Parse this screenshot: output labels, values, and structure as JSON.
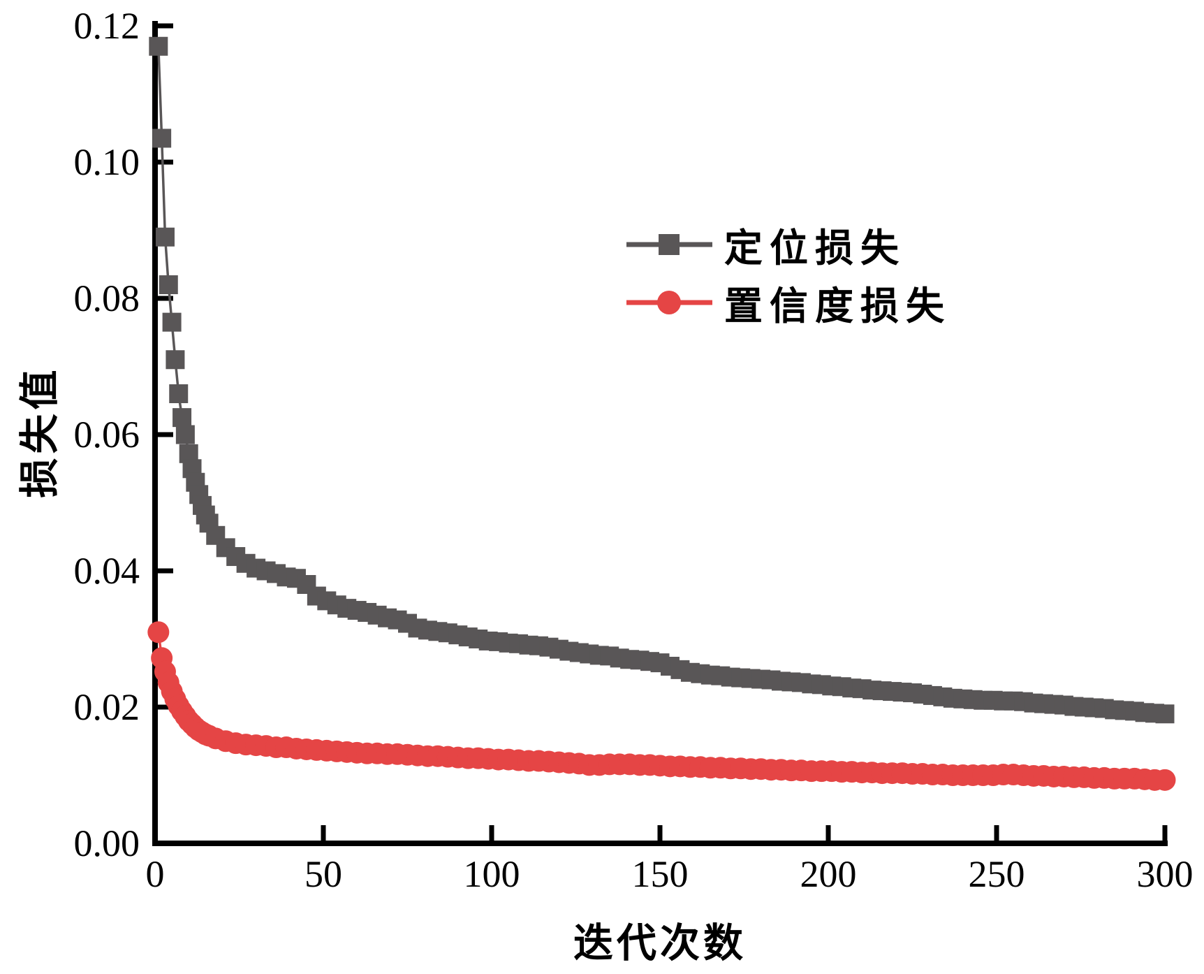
{
  "figure": {
    "background": "#ffffff",
    "axis_color": "#000000",
    "text_color": "#000000"
  },
  "chart_data": {
    "type": "line",
    "title": "",
    "xlabel": "迭代次数",
    "ylabel": "损失值",
    "xlim": [
      0,
      300
    ],
    "ylim": [
      0.0,
      0.12
    ],
    "xticks": [
      0,
      50,
      100,
      150,
      200,
      250,
      300
    ],
    "ytick_labels": [
      "0.00",
      "0.02",
      "0.04",
      "0.06",
      "0.08",
      "0.10",
      "0.12"
    ],
    "ytick_values": [
      0.0,
      0.02,
      0.04,
      0.06,
      0.08,
      0.1,
      0.12
    ],
    "grid": false,
    "legend_position": "upper-right-inside",
    "series": [
      {
        "name": "定位损失",
        "color": "#595657",
        "marker": "square",
        "points": [
          [
            1,
            0.117
          ],
          [
            2,
            0.1035
          ],
          [
            3,
            0.089
          ],
          [
            4,
            0.082
          ],
          [
            5,
            0.0765
          ],
          [
            6,
            0.071
          ],
          [
            7,
            0.066
          ],
          [
            8,
            0.0625
          ],
          [
            9,
            0.06
          ],
          [
            10,
            0.0572
          ],
          [
            11,
            0.055
          ],
          [
            12,
            0.053
          ],
          [
            13,
            0.0512
          ],
          [
            14,
            0.0496
          ],
          [
            15,
            0.0482
          ],
          [
            16,
            0.047
          ],
          [
            18,
            0.0452
          ],
          [
            21,
            0.0434
          ],
          [
            24,
            0.0421
          ],
          [
            27,
            0.0411
          ],
          [
            30,
            0.0404
          ],
          [
            33,
            0.04
          ],
          [
            36,
            0.0396
          ],
          [
            39,
            0.0391
          ],
          [
            42,
            0.0389
          ],
          [
            45,
            0.038
          ],
          [
            48,
            0.0363
          ],
          [
            51,
            0.0356
          ],
          [
            54,
            0.035
          ],
          [
            57,
            0.0345
          ],
          [
            60,
            0.0342
          ],
          [
            63,
            0.0339
          ],
          [
            66,
            0.0335
          ],
          [
            69,
            0.0331
          ],
          [
            72,
            0.0328
          ],
          [
            75,
            0.0323
          ],
          [
            78,
            0.0316
          ],
          [
            81,
            0.0313
          ],
          [
            84,
            0.0311
          ],
          [
            87,
            0.0309
          ],
          [
            90,
            0.0306
          ],
          [
            93,
            0.0303
          ],
          [
            96,
            0.03
          ],
          [
            99,
            0.0297
          ],
          [
            102,
            0.0296
          ],
          [
            105,
            0.0294
          ],
          [
            108,
            0.0293
          ],
          [
            111,
            0.0291
          ],
          [
            114,
            0.029
          ],
          [
            117,
            0.0288
          ],
          [
            120,
            0.0285
          ],
          [
            123,
            0.0282
          ],
          [
            126,
            0.028
          ],
          [
            129,
            0.0278
          ],
          [
            132,
            0.0276
          ],
          [
            135,
            0.0275
          ],
          [
            138,
            0.0272
          ],
          [
            141,
            0.027
          ],
          [
            144,
            0.0269
          ],
          [
            147,
            0.0267
          ],
          [
            150,
            0.0265
          ],
          [
            153,
            0.026
          ],
          [
            156,
            0.0255
          ],
          [
            159,
            0.0251
          ],
          [
            162,
            0.0249
          ],
          [
            165,
            0.0247
          ],
          [
            168,
            0.0246
          ],
          [
            171,
            0.0244
          ],
          [
            174,
            0.0243
          ],
          [
            177,
            0.0242
          ],
          [
            180,
            0.0241
          ],
          [
            183,
            0.024
          ],
          [
            186,
            0.0238
          ],
          [
            189,
            0.0237
          ],
          [
            192,
            0.0236
          ],
          [
            195,
            0.0234
          ],
          [
            198,
            0.0233
          ],
          [
            201,
            0.0231
          ],
          [
            204,
            0.023
          ],
          [
            207,
            0.0228
          ],
          [
            210,
            0.0227
          ],
          [
            213,
            0.0225
          ],
          [
            216,
            0.0224
          ],
          [
            219,
            0.0223
          ],
          [
            222,
            0.0222
          ],
          [
            225,
            0.0221
          ],
          [
            228,
            0.0219
          ],
          [
            231,
            0.0217
          ],
          [
            234,
            0.0215
          ],
          [
            237,
            0.0213
          ],
          [
            240,
            0.0212
          ],
          [
            243,
            0.0211
          ],
          [
            246,
            0.021
          ],
          [
            249,
            0.021
          ],
          [
            252,
            0.0209
          ],
          [
            255,
            0.0209
          ],
          [
            258,
            0.0208
          ],
          [
            261,
            0.0206
          ],
          [
            264,
            0.0205
          ],
          [
            267,
            0.0204
          ],
          [
            270,
            0.0203
          ],
          [
            273,
            0.0201
          ],
          [
            276,
            0.02
          ],
          [
            279,
            0.0199
          ],
          [
            282,
            0.0198
          ],
          [
            285,
            0.0196
          ],
          [
            288,
            0.0195
          ],
          [
            291,
            0.0194
          ],
          [
            294,
            0.0192
          ],
          [
            297,
            0.0191
          ],
          [
            300,
            0.019
          ]
        ]
      },
      {
        "name": "置信度损失",
        "color": "#e54545",
        "marker": "circle",
        "points": [
          [
            1,
            0.031
          ],
          [
            2,
            0.0272
          ],
          [
            3,
            0.0252
          ],
          [
            4,
            0.0236
          ],
          [
            5,
            0.0223
          ],
          [
            6,
            0.0212
          ],
          [
            7,
            0.0202
          ],
          [
            8,
            0.0194
          ],
          [
            9,
            0.0187
          ],
          [
            10,
            0.018
          ],
          [
            11,
            0.0175
          ],
          [
            12,
            0.017
          ],
          [
            13,
            0.0166
          ],
          [
            14,
            0.0163
          ],
          [
            15,
            0.016
          ],
          [
            16,
            0.0158
          ],
          [
            18,
            0.0154
          ],
          [
            21,
            0.015
          ],
          [
            24,
            0.0147
          ],
          [
            27,
            0.0145
          ],
          [
            30,
            0.0144
          ],
          [
            33,
            0.0143
          ],
          [
            36,
            0.0141
          ],
          [
            39,
            0.0141
          ],
          [
            42,
            0.0139
          ],
          [
            45,
            0.0138
          ],
          [
            48,
            0.0137
          ],
          [
            51,
            0.0136
          ],
          [
            54,
            0.0135
          ],
          [
            57,
            0.0134
          ],
          [
            60,
            0.0133
          ],
          [
            63,
            0.0132
          ],
          [
            66,
            0.0132
          ],
          [
            69,
            0.0131
          ],
          [
            72,
            0.0131
          ],
          [
            75,
            0.013
          ],
          [
            78,
            0.0129
          ],
          [
            81,
            0.0128
          ],
          [
            84,
            0.0128
          ],
          [
            87,
            0.0127
          ],
          [
            90,
            0.0126
          ],
          [
            93,
            0.0125
          ],
          [
            96,
            0.0125
          ],
          [
            99,
            0.0124
          ],
          [
            102,
            0.0123
          ],
          [
            105,
            0.0123
          ],
          [
            108,
            0.0122
          ],
          [
            111,
            0.0121
          ],
          [
            114,
            0.0121
          ],
          [
            117,
            0.012
          ],
          [
            120,
            0.0119
          ],
          [
            123,
            0.0118
          ],
          [
            126,
            0.0117
          ],
          [
            129,
            0.0115
          ],
          [
            132,
            0.0115
          ],
          [
            135,
            0.0116
          ],
          [
            138,
            0.0116
          ],
          [
            141,
            0.0116
          ],
          [
            144,
            0.0115
          ],
          [
            147,
            0.0115
          ],
          [
            150,
            0.0114
          ],
          [
            153,
            0.0113
          ],
          [
            156,
            0.0113
          ],
          [
            159,
            0.0112
          ],
          [
            162,
            0.0112
          ],
          [
            165,
            0.0111
          ],
          [
            168,
            0.0111
          ],
          [
            171,
            0.011
          ],
          [
            174,
            0.011
          ],
          [
            177,
            0.0109
          ],
          [
            180,
            0.0109
          ],
          [
            183,
            0.0108
          ],
          [
            186,
            0.0108
          ],
          [
            189,
            0.0107
          ],
          [
            192,
            0.0107
          ],
          [
            195,
            0.0106
          ],
          [
            198,
            0.0106
          ],
          [
            201,
            0.0106
          ],
          [
            204,
            0.0105
          ],
          [
            207,
            0.0105
          ],
          [
            210,
            0.0104
          ],
          [
            213,
            0.0104
          ],
          [
            216,
            0.0103
          ],
          [
            219,
            0.0103
          ],
          [
            222,
            0.0103
          ],
          [
            225,
            0.0102
          ],
          [
            228,
            0.0102
          ],
          [
            231,
            0.0101
          ],
          [
            234,
            0.0101
          ],
          [
            237,
            0.01
          ],
          [
            240,
            0.01
          ],
          [
            243,
            0.01
          ],
          [
            246,
            0.01
          ],
          [
            249,
            0.01
          ],
          [
            252,
            0.0101
          ],
          [
            255,
            0.0101
          ],
          [
            258,
            0.01
          ],
          [
            261,
            0.0099
          ],
          [
            264,
            0.0099
          ],
          [
            267,
            0.0098
          ],
          [
            270,
            0.0098
          ],
          [
            273,
            0.0097
          ],
          [
            276,
            0.0097
          ],
          [
            279,
            0.0096
          ],
          [
            282,
            0.0096
          ],
          [
            285,
            0.0095
          ],
          [
            288,
            0.0095
          ],
          [
            291,
            0.0095
          ],
          [
            294,
            0.0094
          ],
          [
            297,
            0.0093
          ],
          [
            300,
            0.0093
          ]
        ]
      }
    ]
  }
}
